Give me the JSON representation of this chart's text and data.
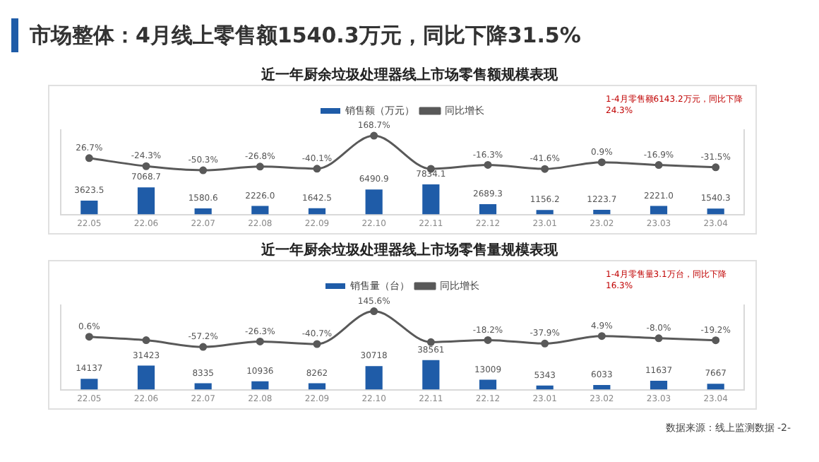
{
  "chart_data": [
    {
      "type": "bar",
      "title": "近一年厨余垃圾处理器线上市场零售额规模表现",
      "annotations": [
        "市场整体：4月线上零售额1540.3万元，同比下降31.5%",
        "1-4月零售额6143.2万元，同比下降24.3%"
      ],
      "categories": [
        "22.05",
        "22.06",
        "22.07",
        "22.08",
        "22.09",
        "22.10",
        "22.11",
        "22.12",
        "23.01",
        "23.02",
        "23.03",
        "23.04"
      ],
      "series": [
        {
          "name": "销售额（万元）",
          "color": "#1f5ca8",
          "values": [
            3623.5,
            7068.7,
            1580.6,
            2226.0,
            1642.5,
            6490.9,
            7834.1,
            2689.3,
            1156.2,
            1223.7,
            2221.0,
            1540.3
          ],
          "value_labels": [
            "3623.5",
            "7068.7",
            "1580.6",
            "2226.0",
            "1642.5",
            "6490.9",
            "7834.1",
            "2689.3",
            "1156.2",
            "1223.7",
            "2221.0",
            "1540.3"
          ]
        },
        {
          "name": "同比增长",
          "type": "line",
          "axis": "y2",
          "color": "#595959",
          "values": [
            26.7,
            -24.3,
            -50.3,
            -26.8,
            -40.1,
            168.7,
            -41.0,
            -16.3,
            -41.6,
            0.9,
            -16.9,
            -31.5
          ],
          "value_labels": [
            "26.7%",
            "-24.3%",
            "-50.3%",
            "-26.8%",
            "-40.1%",
            "168.7%",
            null,
            "-16.3%",
            "-41.6%",
            "0.9%",
            "-16.9%",
            "-31.5%"
          ]
        }
      ],
      "ylim": [
        0,
        22000
      ],
      "y2lim": [
        -330,
        205
      ],
      "legend": "top",
      "marker": "circle",
      "tick_labels": "x",
      "grid": false
    },
    {
      "type": "bar",
      "title": "近一年厨余垃圾处理器线上市场零售量规模表现",
      "annotations": [
        "1-4月零售量3.1万台，同比下降16.3%",
        "数据来源：线上监测数据 -2-"
      ],
      "categories": [
        "22.05",
        "22.06",
        "22.07",
        "22.08",
        "22.09",
        "22.10",
        "22.11",
        "22.12",
        "23.01",
        "23.02",
        "23.03",
        "23.04"
      ],
      "series": [
        {
          "name": "销售量（台）",
          "color": "#1f5ca8",
          "values": [
            14137,
            31423,
            8335,
            10936,
            8262,
            30718,
            38561,
            13009,
            5343,
            6033,
            11637,
            7667
          ],
          "value_labels": [
            "14137",
            "31423",
            "8335",
            "10936",
            "8262",
            "30718",
            "38561",
            "13009",
            "5343",
            "6033",
            "11637",
            "7667"
          ]
        },
        {
          "name": "同比增长",
          "type": "line",
          "axis": "y2",
          "color": "#595959",
          "values": [
            0.6,
            -19.0,
            -57.2,
            -26.3,
            -40.7,
            145.6,
            -30.0,
            -18.2,
            -37.9,
            4.9,
            -8.0,
            -19.2
          ],
          "value_labels": [
            "0.6%",
            null,
            "-57.2%",
            "-26.3%",
            "-40.7%",
            "145.6%",
            null,
            "-18.2%",
            "-37.9%",
            "4.9%",
            "-8.0%",
            "-19.2%"
          ]
        }
      ],
      "ylim": [
        0,
        110000
      ],
      "y2lim": [
        -300,
        180
      ],
      "legend": "top",
      "marker": "circle",
      "tick_labels": "x",
      "grid": false
    }
  ]
}
